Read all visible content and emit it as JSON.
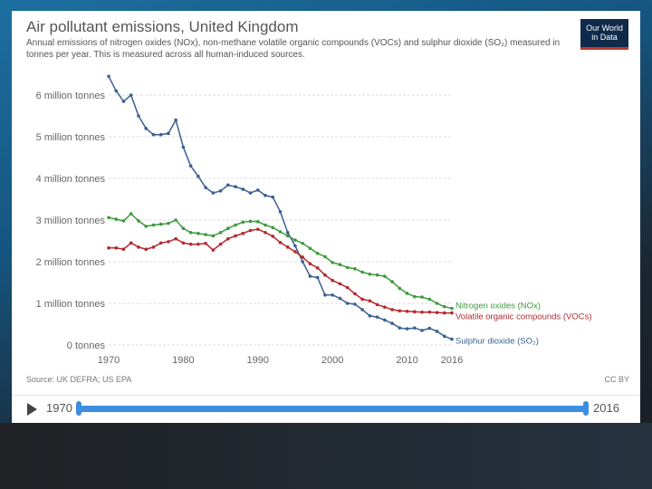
{
  "header": {
    "title": "Air pollutant emissions, United Kingdom",
    "subtitle": "Annual emissions of nitrogen oxides (NOx), non-methane volatile organic compounds (VOCs) and sulphur dioxide (SO₂) measured in tonnes per year. This is measured across all human-induced sources.",
    "logo_line1": "Our World",
    "logo_line2": "in Data"
  },
  "footer": {
    "source": "Source: UK DEFRA; US EPA",
    "license": "CC BY"
  },
  "timeline": {
    "start_year": "1970",
    "end_year": "2016",
    "play_label": "play"
  },
  "colors": {
    "sulphur": "#3a5f92",
    "nox": "#3c9a3c",
    "voc": "#b5282e",
    "grid": "#dddddd",
    "axis_text": "#666666"
  },
  "chart_data": {
    "type": "line",
    "title": "Air pollutant emissions, United Kingdom",
    "xlabel": "",
    "ylabel": "",
    "xlim": [
      1970,
      2016
    ],
    "ylim": [
      0,
      6500000
    ],
    "x_ticks": [
      1970,
      1980,
      1990,
      2000,
      2010,
      2016
    ],
    "y_ticks": [
      0,
      1000000,
      2000000,
      3000000,
      4000000,
      5000000,
      6000000
    ],
    "y_tick_labels": [
      "0 tonnes",
      "1 million tonnes",
      "2 million tonnes",
      "3 million tonnes",
      "4 million tonnes",
      "5 million tonnes",
      "6 million tonnes"
    ],
    "x": [
      1970,
      1971,
      1972,
      1973,
      1974,
      1975,
      1976,
      1977,
      1978,
      1979,
      1980,
      1981,
      1982,
      1983,
      1984,
      1985,
      1986,
      1987,
      1988,
      1989,
      1990,
      1991,
      1992,
      1993,
      1994,
      1995,
      1996,
      1997,
      1998,
      1999,
      2000,
      2001,
      2002,
      2003,
      2004,
      2005,
      2006,
      2007,
      2008,
      2009,
      2010,
      2011,
      2012,
      2013,
      2014,
      2015,
      2016
    ],
    "series": [
      {
        "name": "Sulphur dioxide (SO₂)",
        "color_key": "sulphur",
        "values": [
          6450000,
          6100000,
          5850000,
          6000000,
          5500000,
          5200000,
          5050000,
          5050000,
          5080000,
          5400000,
          4750000,
          4300000,
          4050000,
          3780000,
          3650000,
          3700000,
          3840000,
          3800000,
          3740000,
          3650000,
          3720000,
          3590000,
          3550000,
          3200000,
          2700000,
          2380000,
          2000000,
          1650000,
          1620000,
          1200000,
          1200000,
          1120000,
          1000000,
          980000,
          850000,
          700000,
          670000,
          600000,
          520000,
          410000,
          390000,
          410000,
          350000,
          400000,
          330000,
          210000,
          140000
        ]
      },
      {
        "name": "Nitrogen oxides (NOx)",
        "color_key": "nox",
        "values": [
          3060000,
          3020000,
          2980000,
          3150000,
          2980000,
          2850000,
          2880000,
          2900000,
          2920000,
          3000000,
          2800000,
          2700000,
          2680000,
          2650000,
          2620000,
          2700000,
          2800000,
          2880000,
          2950000,
          2970000,
          2960000,
          2880000,
          2820000,
          2720000,
          2620000,
          2520000,
          2440000,
          2320000,
          2200000,
          2120000,
          1980000,
          1930000,
          1860000,
          1830000,
          1750000,
          1700000,
          1680000,
          1650000,
          1520000,
          1360000,
          1240000,
          1160000,
          1150000,
          1100000,
          1000000,
          920000,
          880000
        ]
      },
      {
        "name": "Volatile organic compounds (VOCs)",
        "color_key": "voc",
        "values": [
          2330000,
          2330000,
          2300000,
          2450000,
          2350000,
          2300000,
          2350000,
          2450000,
          2480000,
          2550000,
          2450000,
          2420000,
          2420000,
          2440000,
          2280000,
          2420000,
          2550000,
          2620000,
          2680000,
          2750000,
          2780000,
          2700000,
          2610000,
          2460000,
          2350000,
          2240000,
          2110000,
          1950000,
          1850000,
          1680000,
          1550000,
          1470000,
          1380000,
          1230000,
          1100000,
          1060000,
          970000,
          910000,
          850000,
          820000,
          810000,
          800000,
          790000,
          790000,
          780000,
          770000,
          770000
        ]
      }
    ],
    "series_labels": [
      "Nitrogen oxides (NOx)",
      "Volatile organic compounds (VOCs)",
      "Sulphur dioxide (SO₂)"
    ]
  }
}
